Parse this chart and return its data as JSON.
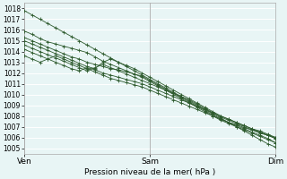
{
  "xlabel": "Pression niveau de la mer( hPa )",
  "xtick_labels": [
    "Ven",
    "Sam",
    "Dim"
  ],
  "xtick_positions": [
    0,
    48,
    96
  ],
  "ylim": [
    1004.5,
    1018.5
  ],
  "yticks": [
    1005,
    1006,
    1007,
    1008,
    1009,
    1010,
    1011,
    1012,
    1013,
    1014,
    1015,
    1016,
    1017,
    1018
  ],
  "bg_color": "#e8f5f5",
  "grid_color": "#ffffff",
  "line_color": "#2d5a2d",
  "n_hours": 96,
  "lines": [
    [
      1017.8,
      1017.4,
      1017.0,
      1016.6,
      1016.2,
      1015.8,
      1015.4,
      1015.0,
      1014.6,
      1014.2,
      1013.8,
      1013.4,
      1013.0,
      1012.6,
      1012.2,
      1011.8,
      1011.4,
      1011.0,
      1010.6,
      1010.2,
      1009.8,
      1009.4,
      1009.0,
      1008.6,
      1008.2,
      1007.8,
      1007.4,
      1007.0,
      1006.6,
      1006.2,
      1005.8,
      1005.4,
      1005.1
    ],
    [
      1015.9,
      1015.6,
      1015.2,
      1014.9,
      1014.7,
      1014.5,
      1014.3,
      1014.1,
      1013.9,
      1013.5,
      1013.1,
      1012.8,
      1012.5,
      1012.2,
      1011.9,
      1011.6,
      1011.2,
      1010.8,
      1010.4,
      1010.0,
      1009.6,
      1009.2,
      1008.8,
      1008.4,
      1008.0,
      1007.6,
      1007.3,
      1007.0,
      1006.7,
      1006.4,
      1006.1,
      1005.8,
      1005.5
    ],
    [
      1015.3,
      1015.0,
      1014.7,
      1014.4,
      1014.1,
      1013.8,
      1013.5,
      1013.3,
      1013.0,
      1012.8,
      1012.6,
      1012.4,
      1012.3,
      1012.1,
      1011.9,
      1011.7,
      1011.3,
      1010.9,
      1010.5,
      1010.1,
      1009.7,
      1009.3,
      1008.9,
      1008.5,
      1008.1,
      1007.7,
      1007.4,
      1007.1,
      1006.8,
      1006.5,
      1006.2,
      1005.9,
      1005.5
    ],
    [
      1015.0,
      1014.7,
      1014.4,
      1014.1,
      1013.8,
      1013.5,
      1013.2,
      1012.9,
      1012.6,
      1012.4,
      1013.0,
      1013.3,
      1013.0,
      1012.7,
      1012.4,
      1012.0,
      1011.6,
      1011.2,
      1010.8,
      1010.4,
      1010.0,
      1009.6,
      1009.2,
      1008.8,
      1008.4,
      1008.0,
      1007.7,
      1007.4,
      1007.1,
      1006.8,
      1006.5,
      1006.2,
      1005.9
    ],
    [
      1014.6,
      1014.3,
      1014.0,
      1013.7,
      1013.4,
      1013.1,
      1012.8,
      1012.5,
      1012.2,
      1012.5,
      1012.8,
      1012.5,
      1012.2,
      1011.9,
      1011.6,
      1011.3,
      1011.0,
      1010.7,
      1010.4,
      1010.1,
      1009.8,
      1009.5,
      1009.1,
      1008.7,
      1008.3,
      1007.9,
      1007.6,
      1007.3,
      1007.0,
      1006.7,
      1006.5,
      1006.2,
      1005.9
    ],
    [
      1014.2,
      1013.9,
      1013.6,
      1013.3,
      1013.0,
      1012.7,
      1012.4,
      1012.2,
      1012.5,
      1012.3,
      1012.0,
      1011.8,
      1011.6,
      1011.4,
      1011.2,
      1011.0,
      1010.7,
      1010.4,
      1010.1,
      1009.8,
      1009.5,
      1009.2,
      1008.9,
      1008.6,
      1008.3,
      1008.0,
      1007.7,
      1007.4,
      1007.1,
      1006.8,
      1006.6,
      1006.3,
      1006.0
    ],
    [
      1013.6,
      1013.3,
      1013.0,
      1013.3,
      1013.6,
      1013.3,
      1013.0,
      1012.7,
      1012.4,
      1012.1,
      1011.8,
      1011.5,
      1011.3,
      1011.1,
      1010.9,
      1010.7,
      1010.4,
      1010.1,
      1009.8,
      1009.5,
      1009.2,
      1008.9,
      1008.6,
      1008.3,
      1008.0,
      1007.7,
      1007.4,
      1007.2,
      1006.9,
      1006.7,
      1006.4,
      1006.2,
      1006.0
    ]
  ]
}
